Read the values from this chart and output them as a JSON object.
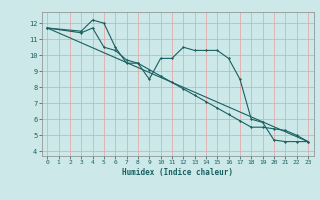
{
  "title": "",
  "xlabel": "Humidex (Indice chaleur)",
  "bg_color": "#cce8e8",
  "grid_color": "#e8a0a0",
  "line_color": "#1a6060",
  "xlim": [
    -0.5,
    23.5
  ],
  "ylim": [
    3.7,
    12.7
  ],
  "yticks": [
    4,
    5,
    6,
    7,
    8,
    9,
    10,
    11,
    12
  ],
  "xticks": [
    0,
    1,
    2,
    3,
    4,
    5,
    6,
    7,
    8,
    9,
    10,
    11,
    12,
    13,
    14,
    15,
    16,
    17,
    18,
    19,
    20,
    21,
    22,
    23
  ],
  "series1_x": [
    0,
    3,
    4,
    5,
    6,
    7,
    8,
    9,
    10,
    11,
    12,
    13,
    14,
    15,
    16,
    17,
    18,
    19,
    20,
    21,
    22,
    23
  ],
  "series1_y": [
    11.7,
    11.5,
    12.2,
    12.0,
    10.5,
    9.5,
    9.5,
    8.5,
    9.8,
    9.8,
    10.5,
    10.3,
    10.3,
    10.3,
    9.8,
    8.5,
    6.0,
    5.8,
    4.7,
    4.6,
    4.6,
    4.6
  ],
  "series2_x": [
    0,
    23
  ],
  "series2_y": [
    11.7,
    4.6
  ],
  "series3_x": [
    0,
    3,
    4,
    5,
    6,
    7,
    8,
    9,
    10,
    11,
    12,
    13,
    14,
    15,
    16,
    17,
    18,
    19,
    20,
    21,
    22,
    23
  ],
  "series3_y": [
    11.7,
    11.4,
    11.7,
    10.5,
    10.3,
    9.7,
    9.5,
    9.1,
    8.7,
    8.3,
    7.9,
    7.5,
    7.1,
    6.7,
    6.3,
    5.9,
    5.5,
    5.5,
    5.4,
    5.3,
    5.0,
    4.6
  ]
}
